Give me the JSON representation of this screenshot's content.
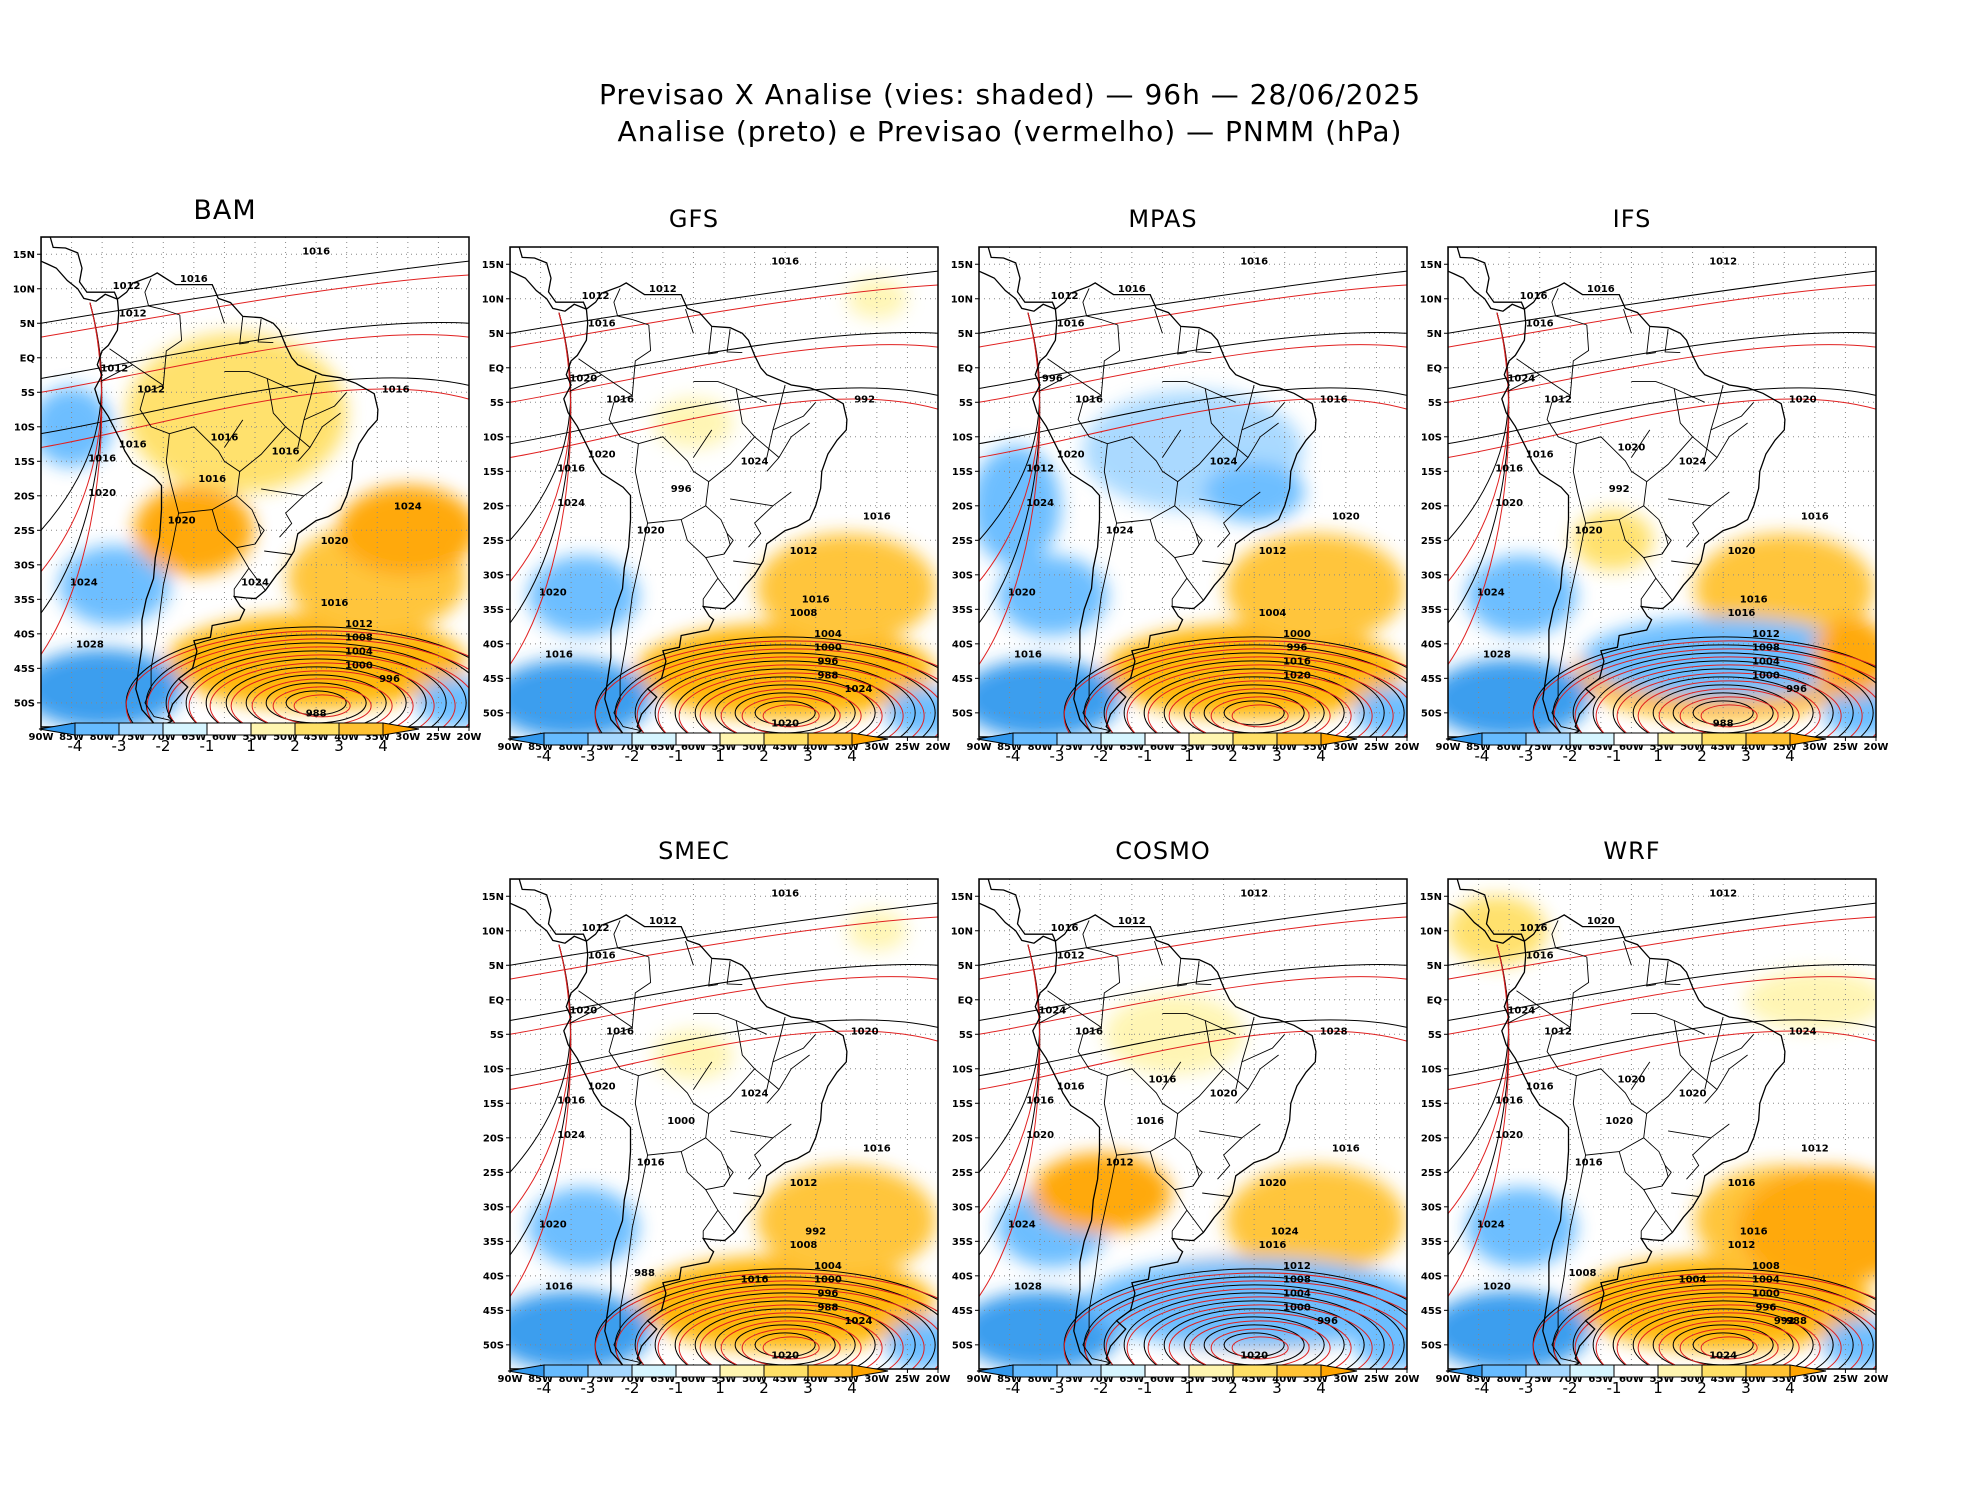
{
  "title": {
    "line1": "Previsao X Analise (vies: shaded) — 96h — 28/06/2025",
    "line2": "Analise (preto) e Previsao (vermelho) — PNMM (hPa)"
  },
  "lat_ticks": [
    "15N",
    "10N",
    "5N",
    "EQ",
    "5S",
    "10S",
    "15S",
    "20S",
    "25S",
    "30S",
    "35S",
    "40S",
    "45S",
    "50S"
  ],
  "lon_ticks": [
    "90W",
    "85W",
    "80W",
    "75W",
    "70W",
    "65W",
    "60W",
    "55W",
    "50W",
    "45W",
    "40W",
    "35W",
    "30W",
    "25W",
    "20W"
  ],
  "colorbar": {
    "labels": [
      "-4",
      "-3",
      "-2",
      "-1",
      "1",
      "2",
      "3",
      "4"
    ],
    "colors": [
      "#3399ee",
      "#66bbff",
      "#a6d8ff",
      "#d6f5ff",
      "#ffffff",
      "#fff5b0",
      "#ffe066",
      "#ffc233",
      "#ffa500"
    ]
  },
  "colors": {
    "analysis": "#000000",
    "forecast": "#e02020"
  },
  "panels": [
    {
      "model": "BAM",
      "labels_black": [
        "1016",
        "1012",
        "1012",
        "1012",
        "1016",
        "1020",
        "1024",
        "1028",
        "1020",
        "1016",
        "1012",
        "1008",
        "1004",
        "1000",
        "996",
        "988",
        "1016",
        "1024"
      ],
      "labels_red": [
        "1016",
        "1016",
        "1024",
        "1020",
        "1016",
        "1012",
        "1016",
        "1016"
      ]
    },
    {
      "model": "GFS",
      "labels_black": [
        "1016",
        "1012",
        "1016",
        "1016",
        "1020",
        "1024",
        "1020",
        "1016",
        "1012",
        "1008",
        "1004",
        "1000",
        "996",
        "988",
        "1024",
        "1020"
      ],
      "labels_red": [
        "1012",
        "1016",
        "1016",
        "1020",
        "1024",
        "1020",
        "992",
        "996",
        "1016"
      ]
    },
    {
      "model": "MPAS",
      "labels_black": [
        "1016",
        "1012",
        "1016",
        "1016",
        "1020",
        "1024",
        "1020",
        "1016",
        "1012",
        "1004",
        "1000",
        "996",
        "1016",
        "1020"
      ],
      "labels_red": [
        "1016",
        "1012",
        "1020",
        "1024",
        "1024",
        "996",
        "1016"
      ]
    },
    {
      "model": "IFS",
      "labels_black": [
        "1012",
        "1016",
        "1016",
        "1012",
        "1016",
        "1020",
        "1024",
        "1028",
        "1020",
        "1016",
        "1012",
        "1008",
        "1004",
        "1000",
        "996",
        "988",
        "1020"
      ],
      "labels_red": [
        "1016",
        "1016",
        "1016",
        "1020",
        "1024",
        "1024",
        "1020",
        "992",
        "1016"
      ]
    },
    {
      "model": "SMEC",
      "labels_black": [
        "1016",
        "1012",
        "1016",
        "1016",
        "1020",
        "1024",
        "1020",
        "1016",
        "1012",
        "1008",
        "1004",
        "1000",
        "996",
        "988",
        "1024",
        "1020"
      ],
      "labels_red": [
        "1012",
        "1016",
        "1016",
        "1016",
        "1024",
        "1020",
        "1020",
        "1000",
        "992",
        "988",
        "1016"
      ]
    },
    {
      "model": "COSMO",
      "labels_black": [
        "1012",
        "1016",
        "1012",
        "1016",
        "1016",
        "1020",
        "1024",
        "1028",
        "1020",
        "1016",
        "1012",
        "1008",
        "1004",
        "1000",
        "996",
        "1020",
        "1016"
      ],
      "labels_red": [
        "1012",
        "1016",
        "1016",
        "1012",
        "1020",
        "1024",
        "1028",
        "1016",
        "1024"
      ]
    },
    {
      "model": "WRF",
      "labels_black": [
        "1012",
        "1016",
        "1016",
        "1012",
        "1016",
        "1020",
        "1024",
        "1020",
        "1016",
        "1012",
        "1008",
        "1004",
        "1000",
        "996",
        "988",
        "1024",
        "1020"
      ],
      "labels_red": [
        "1020",
        "1016",
        "1012",
        "1016",
        "1020",
        "1024",
        "1024",
        "1020",
        "1016",
        "1008",
        "1004",
        "992"
      ]
    }
  ]
}
